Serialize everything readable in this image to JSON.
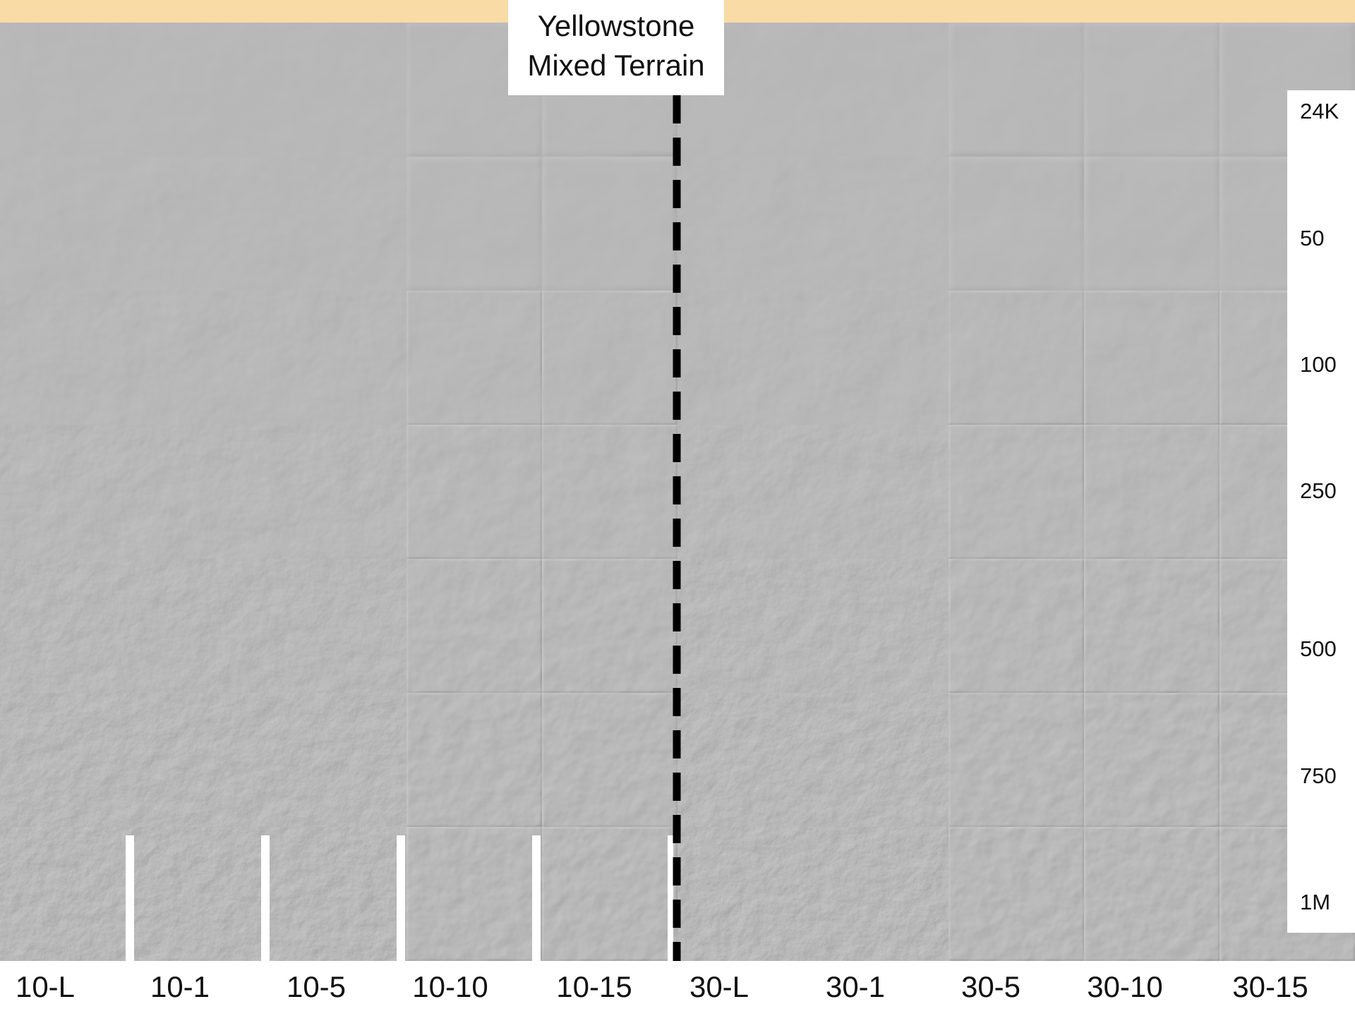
{
  "title": [
    "Yellowstone",
    "Mixed Terrain"
  ],
  "columns": [
    "10-L",
    "10-1",
    "10-5",
    "10-10",
    "10-15",
    "30-L",
    "30-1",
    "30-5",
    "30-10",
    "30-15"
  ],
  "rows": [
    "24K",
    "50",
    "100",
    "250",
    "500",
    "750",
    "1M"
  ]
}
